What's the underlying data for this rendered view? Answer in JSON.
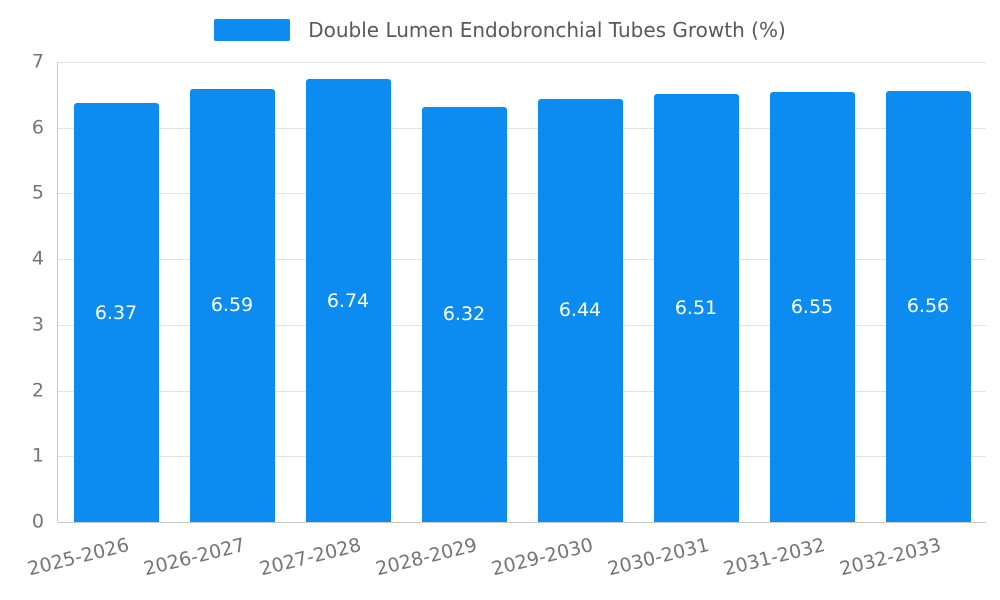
{
  "chart_data": {
    "type": "bar",
    "title": "Double Lumen Endobronchial Tubes Growth (%)",
    "categories": [
      "2025-2026",
      "2026-2027",
      "2027-2028",
      "2028-2029",
      "2029-2030",
      "2030-2031",
      "2031-2032",
      "2032-2033"
    ],
    "values": [
      6.37,
      6.59,
      6.74,
      6.32,
      6.44,
      6.51,
      6.55,
      6.56
    ],
    "value_label_decimals": 2,
    "xlabel": "",
    "ylabel": "",
    "ylim": [
      0,
      7
    ],
    "yticks": [
      0,
      1,
      2,
      3,
      4,
      5,
      6,
      7
    ],
    "grid": "horizontal",
    "legend_position": "top-center",
    "colors": {
      "bar": "#0c8cf0",
      "value_label": "#ffffff",
      "tick_label": "#757575",
      "title_text": "#595959",
      "gridline": "#e3e3e3",
      "axis_line": "#c9c9c9",
      "background": "#ffffff"
    }
  }
}
